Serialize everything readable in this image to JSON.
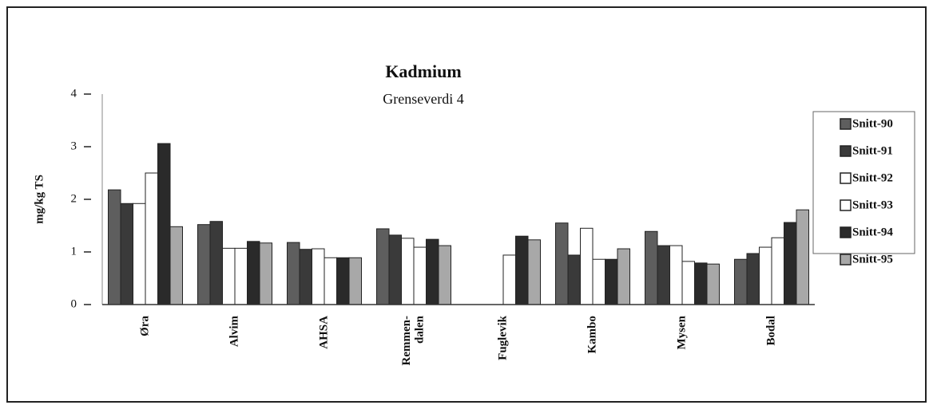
{
  "chart_data": {
    "type": "bar",
    "title": "Kadmium",
    "subtitle": "Grenseverdi 4",
    "y_label": "mg/kg TS",
    "categories": [
      "Øra",
      "Alvim",
      "AHSA",
      "Remmen-\ndalen",
      "Fuglevik",
      "Kambo",
      "Mysen",
      "Bodal"
    ],
    "series": [
      {
        "name": "Snitt-90",
        "color": "#5e5e5e",
        "values": [
          2.18,
          1.52,
          1.18,
          1.44,
          null,
          1.55,
          1.39,
          0.86
        ]
      },
      {
        "name": "Snitt-91",
        "color": "#3a3a3a",
        "values": [
          1.92,
          1.58,
          1.05,
          1.32,
          null,
          0.94,
          1.12,
          0.97
        ]
      },
      {
        "name": "Snitt-92",
        "color": "#ffffff",
        "values": [
          1.92,
          1.07,
          1.06,
          1.26,
          null,
          1.45,
          1.12,
          1.09
        ]
      },
      {
        "name": "Snitt-93",
        "color": "#ffffff",
        "values": [
          2.5,
          1.07,
          0.89,
          1.09,
          0.94,
          0.86,
          0.82,
          1.27
        ]
      },
      {
        "name": "Snitt-94",
        "color": "#2a2a2a",
        "values": [
          3.06,
          1.2,
          0.89,
          1.24,
          1.3,
          0.86,
          0.79,
          1.56
        ]
      },
      {
        "name": "Snitt-95",
        "color": "#a8a8a8",
        "values": [
          1.48,
          1.17,
          0.89,
          1.12,
          1.23,
          1.06,
          0.77,
          1.8
        ]
      }
    ],
    "ylim": [
      0,
      4
    ],
    "yticks": [
      0,
      1,
      2,
      3,
      4
    ],
    "grid": false,
    "legend": "right"
  }
}
